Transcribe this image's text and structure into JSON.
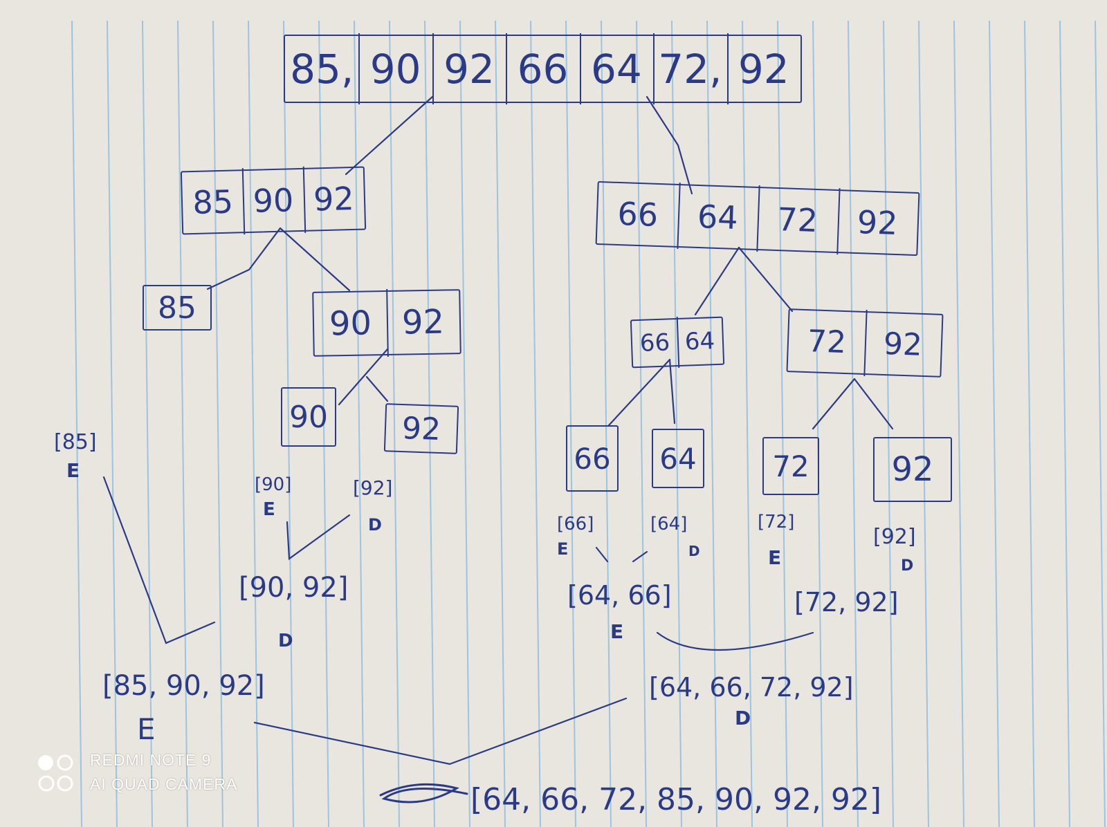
{
  "colors": {
    "paper": "#e9e6df",
    "rule": "#9cc3df",
    "ink": "#2b3a86",
    "margin_shadow": "#3a3a36"
  },
  "root": {
    "cells": [
      "85,",
      "90",
      "92",
      "66",
      "64",
      "72,",
      "92"
    ]
  },
  "split_left": {
    "cells": [
      "85",
      "90",
      "92"
    ]
  },
  "split_right": {
    "cells": [
      "66",
      "64",
      "72",
      "92"
    ]
  },
  "leaf_85": {
    "cells": [
      "85"
    ]
  },
  "pair_90_92": {
    "cells": [
      "90",
      "92"
    ]
  },
  "leaf_90": {
    "cells": [
      "90"
    ]
  },
  "leaf_92a": {
    "cells": [
      "92"
    ]
  },
  "pair_66_64": {
    "cells": [
      "66",
      "64"
    ]
  },
  "pair_72_92": {
    "cells": [
      "72",
      "92"
    ]
  },
  "leaf_66": {
    "cells": [
      "66"
    ]
  },
  "leaf_64": {
    "cells": [
      "64"
    ]
  },
  "leaf_72": {
    "cells": [
      "72"
    ]
  },
  "leaf_92b": {
    "cells": [
      "92"
    ]
  },
  "notes": {
    "n85": "[85]",
    "n85_flag": "E",
    "n90": "[90]",
    "n90_flag": "E",
    "n92": "[92]",
    "n92_flag": "D",
    "m90_92": "[90, 92]",
    "m90_92_flag": "D",
    "n66": "[66]",
    "n66_flag": "E",
    "n64": "[64]",
    "n64_flag": "D",
    "n72": "[72]",
    "n72_flag": "E",
    "n92b": "[92]",
    "n92b_flag": "D",
    "m64_66": "[64, 66]",
    "m64_66_flag": "E",
    "m72_92": "[72, 92]",
    "m85_90_92": "[85, 90, 92]",
    "m85_90_92_flag": "E",
    "m64_66_72_92": "[64, 66, 72, 92]",
    "m64_66_72_92_flag": "D",
    "final": "[64, 66, 72, 85, 90, 92, 92]"
  },
  "watermark": {
    "line1": "REDMI NOTE 9",
    "line2": "AI QUAD CAMERA"
  }
}
